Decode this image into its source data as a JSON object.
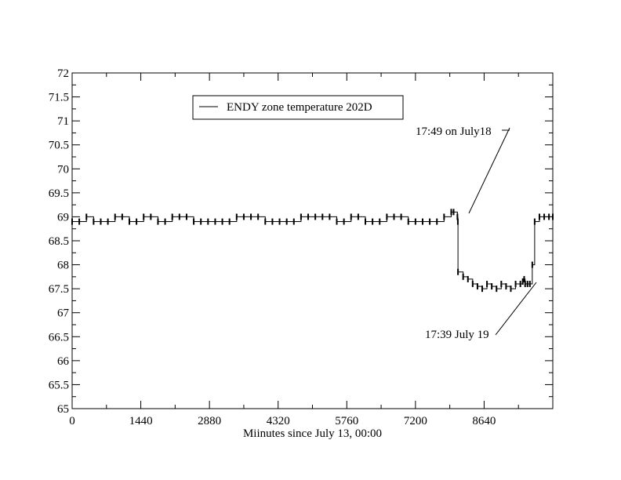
{
  "chart_data": {
    "type": "line",
    "title": "",
    "xlabel": "Miinutes since July 13, 00:00",
    "ylabel": "",
    "xlim": [
      0,
      10080
    ],
    "ylim": [
      65,
      72
    ],
    "x_ticks": [
      0,
      1440,
      2880,
      4320,
      5760,
      7200,
      8640
    ],
    "x_tick_labels": [
      "0",
      "1440",
      "2880",
      "4320",
      "5760",
      "7200",
      "8640"
    ],
    "y_ticks": [
      65,
      65.5,
      66,
      66.5,
      67,
      67.5,
      68,
      68.5,
      69,
      69.5,
      70,
      70.5,
      71,
      71.5,
      72
    ],
    "y_tick_labels": [
      "65",
      "65.5",
      "66",
      "66.5",
      "67",
      "67.5",
      "68",
      "68.5",
      "69",
      "69.5",
      "70",
      "70.5",
      "71",
      "71.5",
      "72"
    ],
    "grid": false,
    "legend": {
      "placement": "top-left",
      "entries": [
        "ENDY zone temperature 202D"
      ]
    },
    "series": [
      {
        "name": "ENDY zone temperature 202D",
        "color": "#000000",
        "x": [
          0,
          150,
          300,
          450,
          600,
          750,
          900,
          1050,
          1200,
          1350,
          1500,
          1650,
          1800,
          1950,
          2100,
          2250,
          2400,
          2550,
          2700,
          2850,
          3000,
          3150,
          3300,
          3450,
          3600,
          3750,
          3900,
          4050,
          4200,
          4350,
          4500,
          4650,
          4800,
          4950,
          5100,
          5250,
          5400,
          5550,
          5700,
          5850,
          6000,
          6150,
          6300,
          6450,
          6600,
          6750,
          6900,
          7050,
          7200,
          7350,
          7500,
          7650,
          7800,
          7950,
          8000,
          8080,
          8089,
          8092,
          8200,
          8300,
          8400,
          8500,
          8600,
          8700,
          8800,
          8900,
          9000,
          9100,
          9200,
          9300,
          9400,
          9450,
          9480,
          9500,
          9550,
          9600,
          9650,
          9700,
          9800,
          9900,
          10000,
          10080
        ],
        "y": [
          68.9,
          68.9,
          69.0,
          68.9,
          68.9,
          68.9,
          69.0,
          69.0,
          68.9,
          68.9,
          69.0,
          69.0,
          68.9,
          68.9,
          69.0,
          69.0,
          69.0,
          68.9,
          68.9,
          68.9,
          68.9,
          68.9,
          68.9,
          69.0,
          69.0,
          69.0,
          69.0,
          68.9,
          68.9,
          68.9,
          68.9,
          68.9,
          69.0,
          69.0,
          69.0,
          69.0,
          69.0,
          68.9,
          68.9,
          69.0,
          69.0,
          68.9,
          68.9,
          68.9,
          69.0,
          69.0,
          69.0,
          68.9,
          68.9,
          68.9,
          68.9,
          68.9,
          69.0,
          69.1,
          69.1,
          69.0,
          68.9,
          67.85,
          67.75,
          67.7,
          67.6,
          67.55,
          67.5,
          67.6,
          67.55,
          67.5,
          67.6,
          67.55,
          67.5,
          67.6,
          67.6,
          67.65,
          67.7,
          67.6,
          67.6,
          67.6,
          68.0,
          68.9,
          69.0,
          69.0,
          69.0,
          69.0
        ]
      }
    ],
    "annotations": [
      {
        "text": "17:49 on July18",
        "x": 8089,
        "y": 69.0
      },
      {
        "text": "17:39 July 19",
        "x": 9579,
        "y": 67.5
      }
    ]
  }
}
